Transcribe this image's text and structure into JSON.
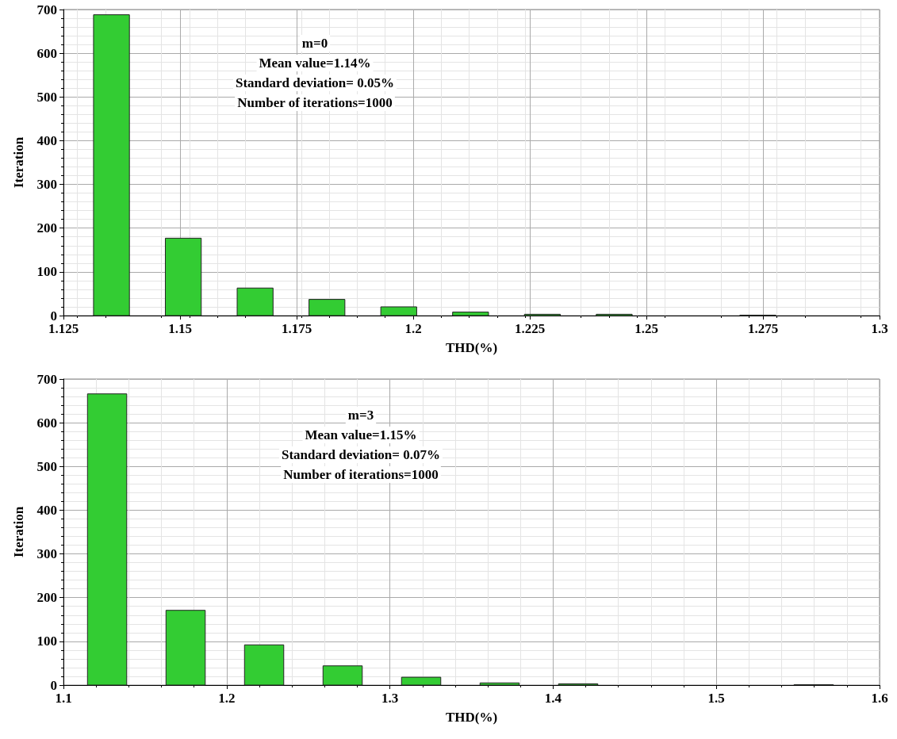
{
  "chart_data": [
    {
      "type": "histogram",
      "xlabel": "THD(%)",
      "ylabel": "Iteration",
      "annotations": [
        "m=0",
        "Mean value=1.14%",
        "Standard deviation= 0.05%",
        "Number of iterations=1000"
      ],
      "bins": [
        1.1276,
        1.143,
        1.1584,
        1.1738,
        1.1892,
        1.2046,
        1.22,
        1.2354,
        1.2508,
        1.2662,
        1.2816
      ],
      "values": [
        688,
        177,
        63,
        37,
        20,
        8,
        3,
        3,
        0,
        1
      ],
      "color": "#33cc33",
      "xlim": [
        1.125,
        1.3
      ],
      "xticks": [
        1.125,
        1.15,
        1.175,
        1.2,
        1.225,
        1.25,
        1.275,
        1.3
      ],
      "ylim": [
        0,
        700
      ],
      "yticks": [
        0,
        100,
        200,
        300,
        400,
        500,
        600,
        700
      ],
      "grid": true
    },
    {
      "type": "histogram",
      "xlabel": "THD(%)",
      "ylabel": "Iteration",
      "annotations": [
        "m=3",
        "Mean value=1.15%",
        "Standard deviation= 0.07%",
        "Number of iterations=1000"
      ],
      "bins": [
        1.1027,
        1.1508,
        1.1989,
        1.247,
        1.2951,
        1.3432,
        1.3913,
        1.4394,
        1.4875,
        1.5356,
        1.5837
      ],
      "values": [
        666,
        171,
        92,
        44,
        18,
        5,
        3,
        0,
        0,
        1
      ],
      "color": "#33cc33",
      "xlim": [
        1.1,
        1.6
      ],
      "xticks": [
        1.1,
        1.2,
        1.3,
        1.4,
        1.5,
        1.6
      ],
      "ylim": [
        0,
        700
      ],
      "yticks": [
        0,
        100,
        200,
        300,
        400,
        500,
        600,
        700
      ],
      "grid": true
    }
  ]
}
